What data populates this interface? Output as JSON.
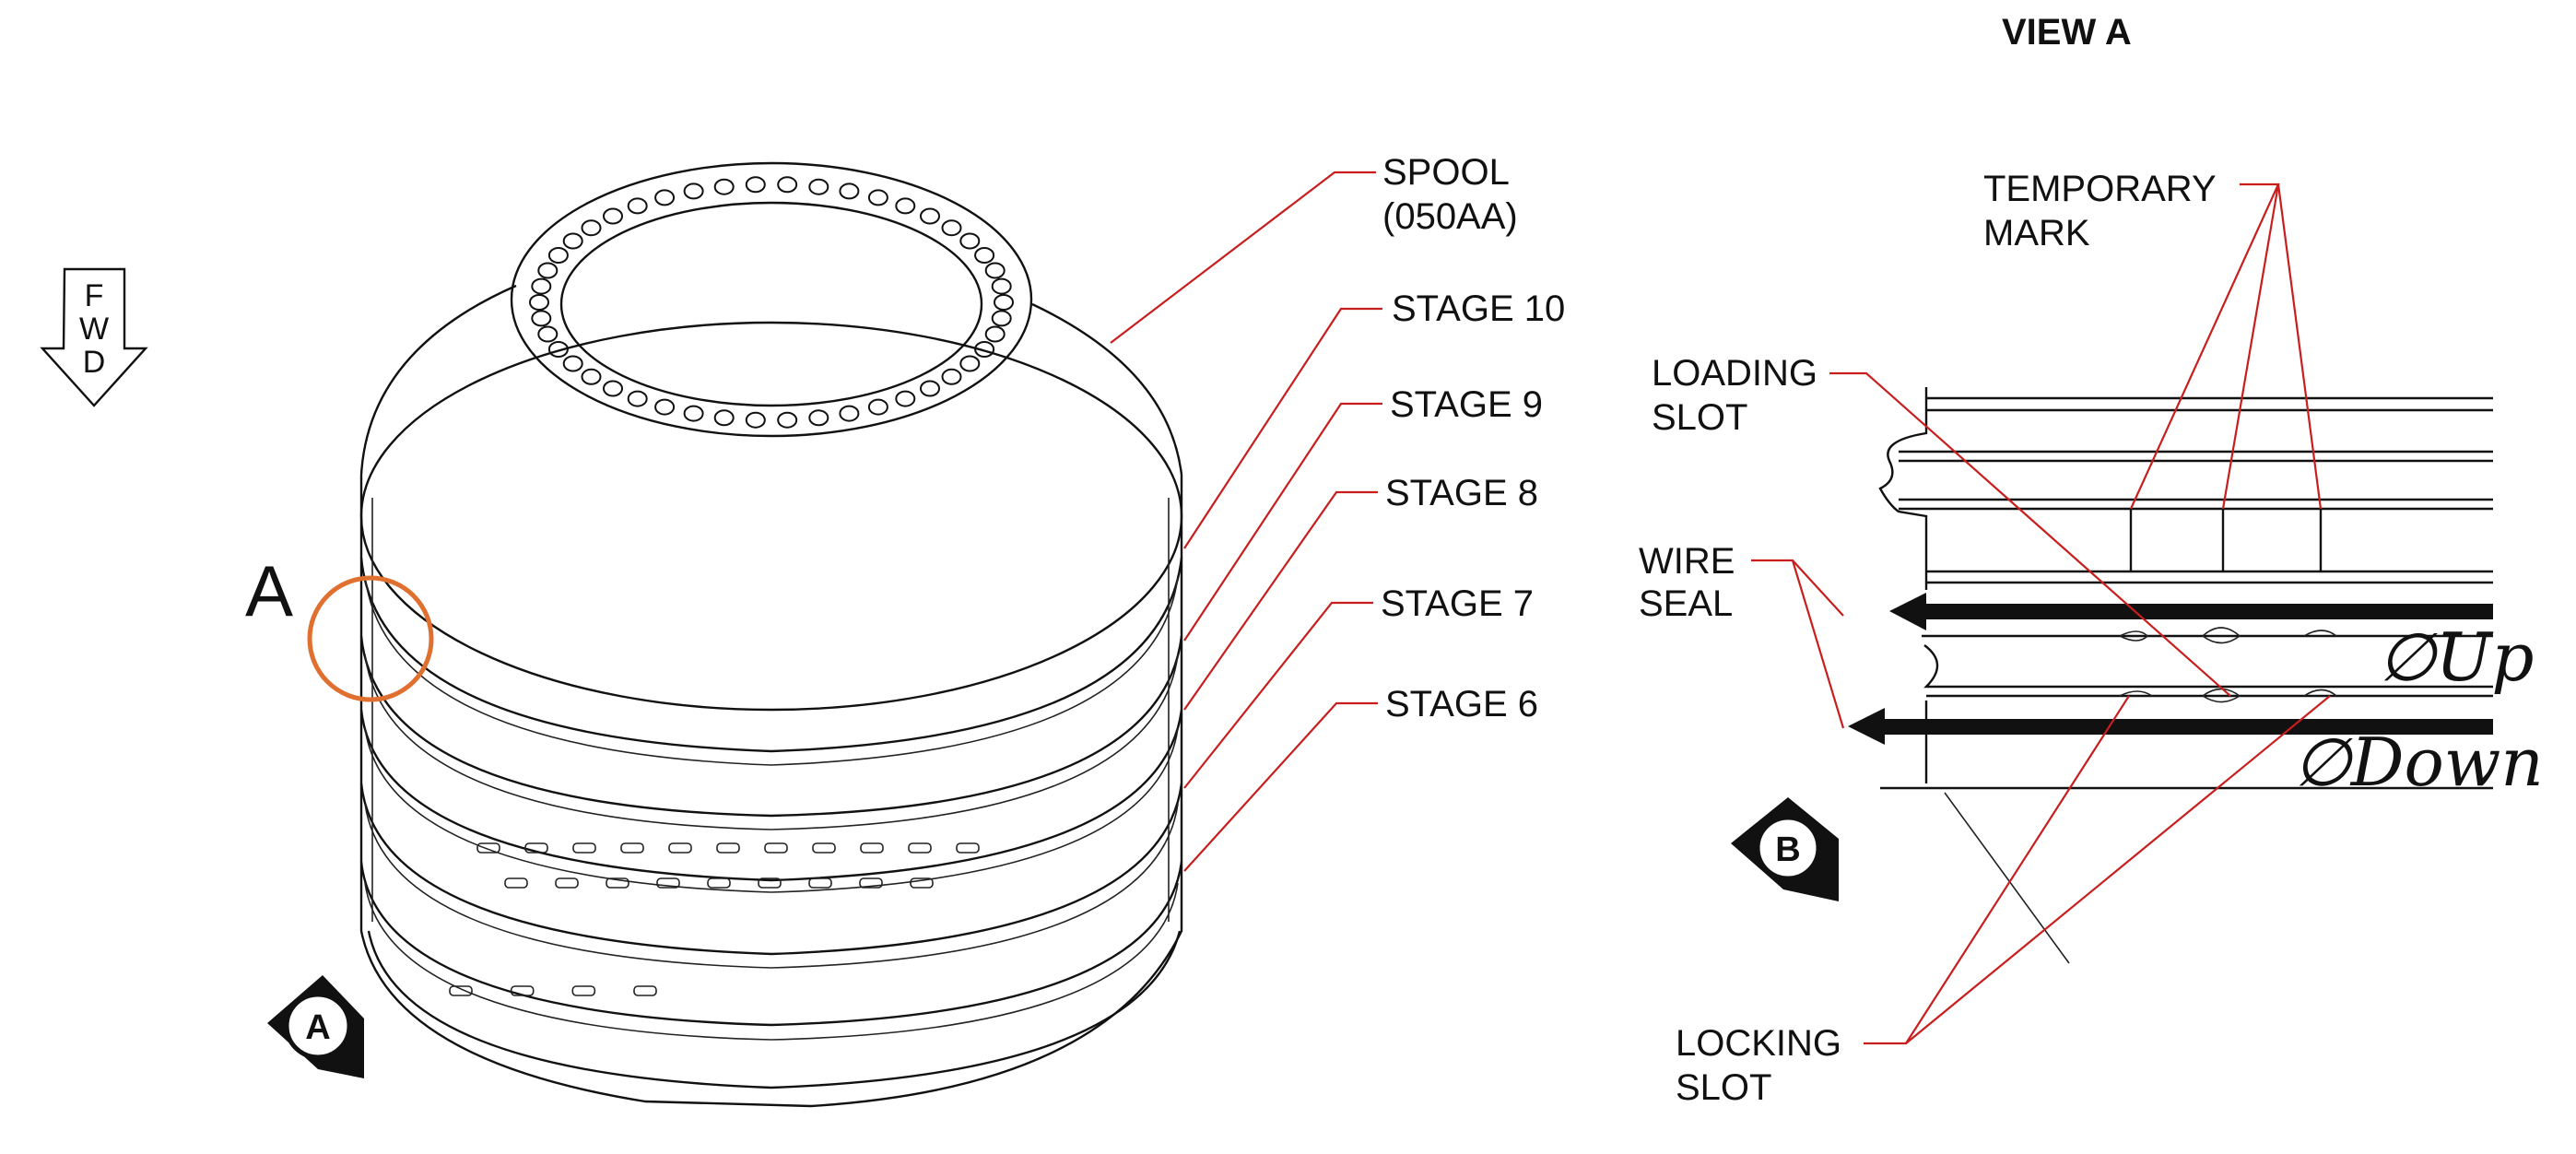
{
  "colors": {
    "leader": "#c81e1e",
    "detail_circle": "#e07030",
    "ink": "#111111"
  },
  "fwd_arrow": {
    "letters": [
      "F",
      "W",
      "D"
    ]
  },
  "detail_marker": {
    "letter": "A"
  },
  "view_marker_a": {
    "letter": "A"
  },
  "view_marker_b": {
    "letter": "B"
  },
  "labels": {
    "spool": [
      "SPOOL",
      "(050AA)"
    ],
    "stage_10": "STAGE 10",
    "stage_9": "STAGE 9",
    "stage_8": "STAGE 8",
    "stage_7": "STAGE 7",
    "stage_6": "STAGE 6"
  },
  "view_a": {
    "title": "VIEW A",
    "temporary_mark": [
      "TEMPORARY",
      "MARK"
    ],
    "loading_slot": [
      "LOADING",
      "SLOT"
    ],
    "wire_seal": [
      "WIRE",
      "SEAL"
    ],
    "locking_slot": [
      "LOCKING",
      "SLOT"
    ],
    "phi_up": "∅Up",
    "phi_down": "∅Down"
  }
}
